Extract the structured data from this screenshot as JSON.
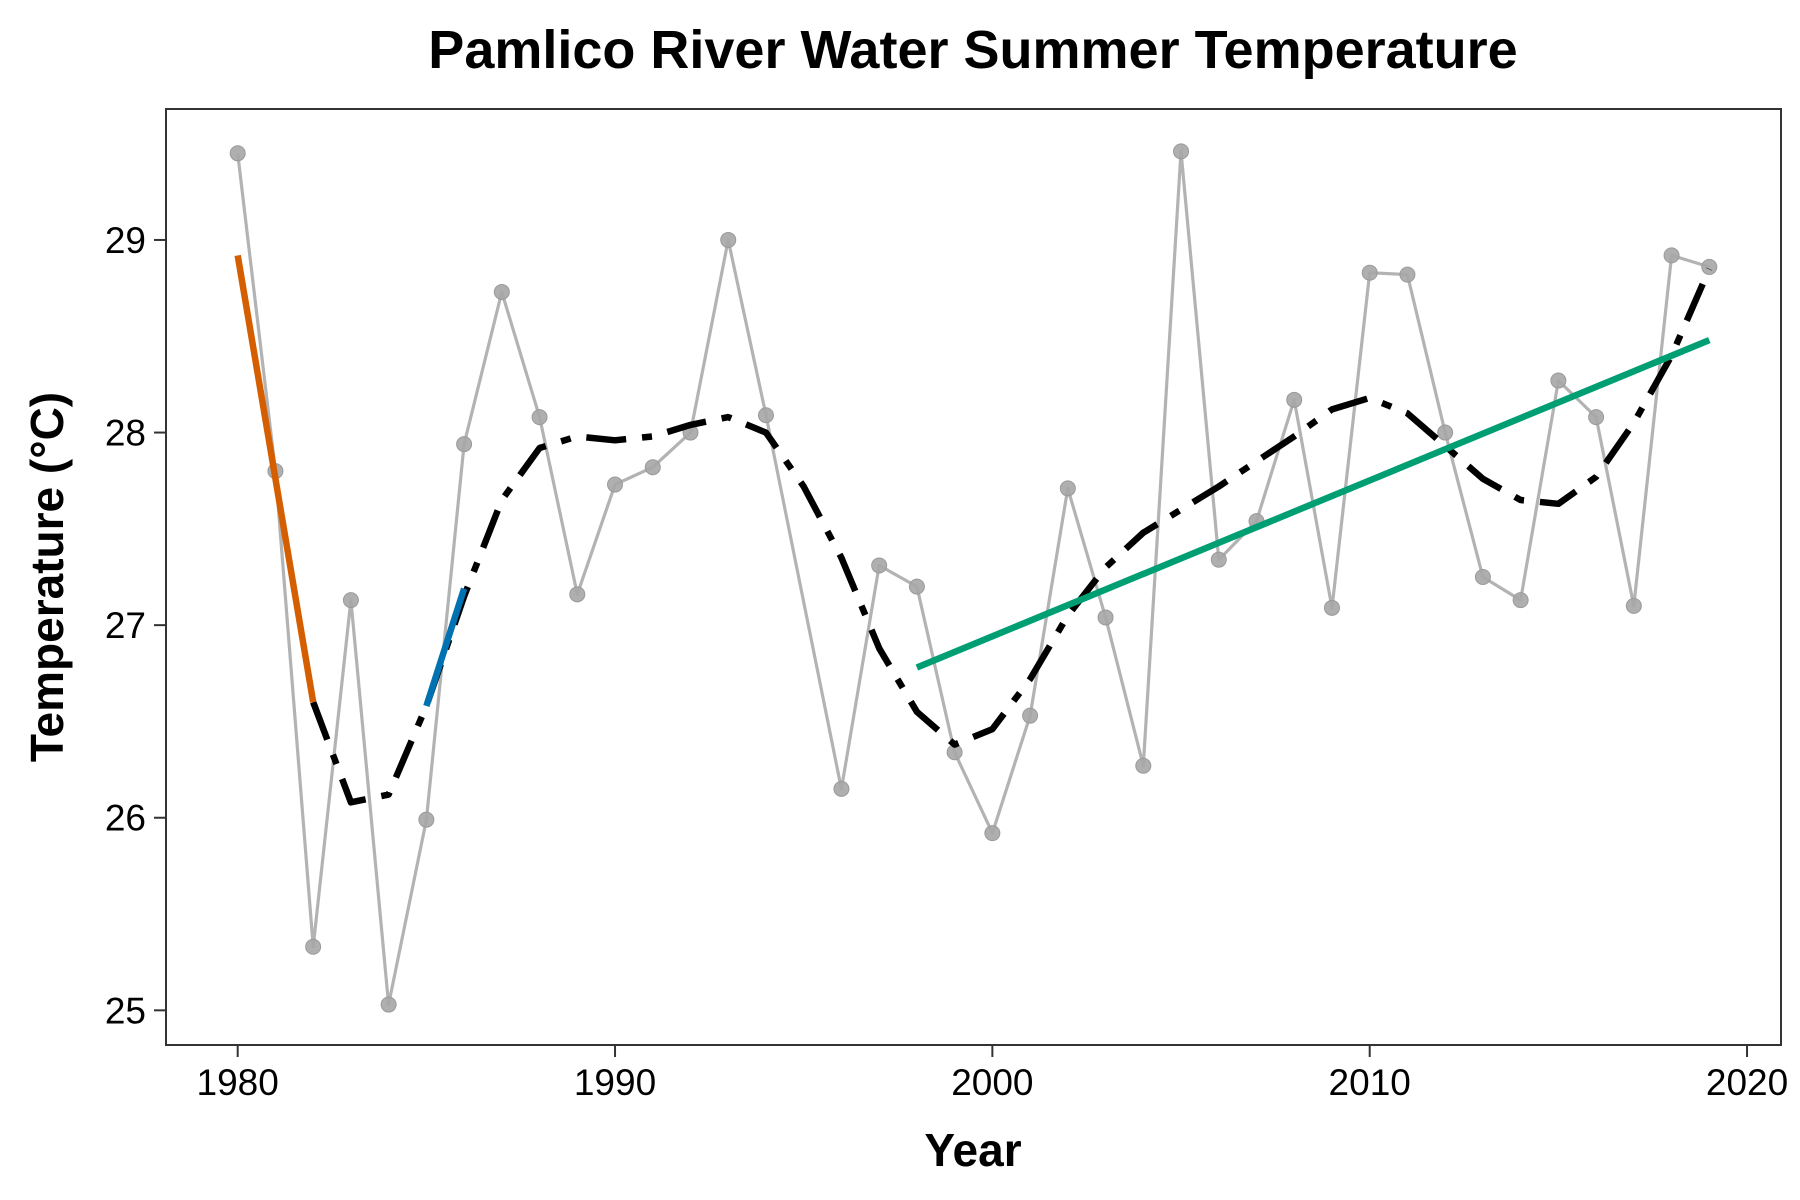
{
  "chart_data": {
    "type": "line",
    "title": "Pamlico River Water Summer Temperature",
    "xlabel": "Year",
    "ylabel": "Temperature (°C)",
    "xlim": [
      1978.1,
      2020.9
    ],
    "ylim": [
      24.82,
      29.68
    ],
    "xticks": [
      1980,
      1990,
      2000,
      2010,
      2020
    ],
    "yticks": [
      25,
      26,
      27,
      28,
      29
    ],
    "grid": false,
    "legend": "none",
    "series": [
      {
        "kind": "observed",
        "color": "#b3b3b3",
        "x": [
          1980,
          1981,
          1982,
          1983,
          1984,
          1985,
          1986,
          1987,
          1988,
          1989,
          1990,
          1991,
          1992,
          1993,
          1994,
          1996,
          1997,
          1998,
          1999,
          2000,
          2001,
          2002,
          2003,
          2004,
          2005,
          2006,
          2007,
          2008,
          2009,
          2010,
          2011,
          2012,
          2013,
          2014,
          2015,
          2016,
          2017,
          2018,
          2019
        ],
        "y": [
          29.45,
          27.8,
          25.33,
          27.13,
          25.03,
          25.99,
          27.94,
          28.73,
          28.08,
          27.16,
          27.73,
          27.82,
          28.0,
          29.0,
          28.09,
          26.15,
          27.31,
          27.2,
          26.34,
          25.92,
          26.53,
          27.71,
          27.04,
          26.27,
          29.46,
          27.34,
          27.54,
          28.17,
          27.09,
          28.83,
          28.82,
          28.0,
          27.25,
          27.13,
          28.27,
          28.08,
          27.1,
          28.92,
          28.86
        ]
      },
      {
        "kind": "smooth-dashed",
        "color": "#000000",
        "x": [
          1982,
          1983,
          1984,
          1985,
          1986,
          1987,
          1988,
          1989,
          1990,
          1991,
          1992,
          1993,
          1994,
          1995,
          1996,
          1997,
          1998,
          1999,
          2000,
          2001,
          2002,
          2003,
          2004,
          2005,
          2006,
          2007,
          2008,
          2009,
          2010,
          2011,
          2012,
          2013,
          2014,
          2015,
          2016,
          2017,
          2018,
          2019
        ],
        "y": [
          26.6,
          26.08,
          26.12,
          26.58,
          27.15,
          27.65,
          27.92,
          27.98,
          27.96,
          27.98,
          28.04,
          28.08,
          28.0,
          27.72,
          27.35,
          26.88,
          26.55,
          26.38,
          26.46,
          26.72,
          27.05,
          27.3,
          27.48,
          27.6,
          27.72,
          27.85,
          27.98,
          28.12,
          28.18,
          28.1,
          27.93,
          27.76,
          27.65,
          27.63,
          27.77,
          28.05,
          28.4,
          28.85
        ]
      },
      {
        "kind": "segment",
        "color": "#d55e00",
        "x": [
          1980,
          1982
        ],
        "y": [
          28.92,
          26.6
        ]
      },
      {
        "kind": "segment",
        "color": "#0072b2",
        "x": [
          1985,
          1986
        ],
        "y": [
          26.58,
          27.19
        ]
      },
      {
        "kind": "segment",
        "color": "#009e73",
        "x": [
          1998,
          2019
        ],
        "y": [
          26.78,
          28.48
        ]
      }
    ]
  }
}
